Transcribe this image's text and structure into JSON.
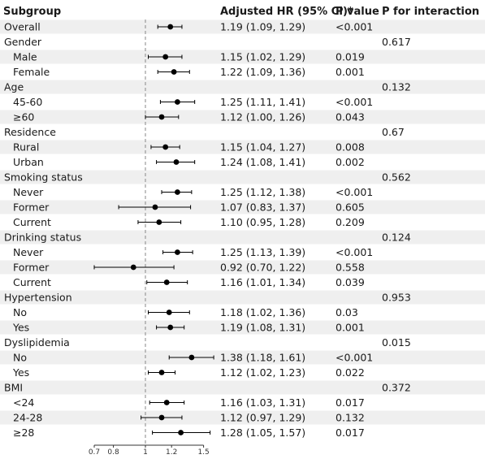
{
  "header": {
    "subgroup": "Subgroup",
    "hr": "Adjusted HR (95% CI)*",
    "p": "P value",
    "p_interaction": "P for interaction"
  },
  "colors": {
    "band": "#efefef",
    "point": "#000000",
    "reference_line": "#888888"
  },
  "chart_data": {
    "type": "forest",
    "title": "",
    "xlabel": "",
    "xlim": [
      0.7,
      1.6
    ],
    "xticks": [
      0.7,
      0.8,
      1,
      1.2,
      1.5
    ],
    "xtick_labels": [
      "0.7",
      "0.8",
      "1",
      "1.2",
      "1.5"
    ],
    "reference": 1,
    "rows": [
      {
        "label": "Overall",
        "level": 0,
        "hr": 1.19,
        "lo": 1.09,
        "hi": 1.29,
        "text": "1.19 (1.09, 1.29)",
        "p": "<0.001",
        "pint": ""
      },
      {
        "label": "Gender",
        "level": 0,
        "pint": "0.617"
      },
      {
        "label": "Male",
        "level": 1,
        "hr": 1.15,
        "lo": 1.02,
        "hi": 1.29,
        "text": "1.15 (1.02, 1.29)",
        "p": "0.019",
        "pint": ""
      },
      {
        "label": "Female",
        "level": 1,
        "hr": 1.22,
        "lo": 1.09,
        "hi": 1.36,
        "text": "1.22 (1.09, 1.36)",
        "p": "0.001",
        "pint": ""
      },
      {
        "label": "Age",
        "level": 0,
        "pint": "0.132"
      },
      {
        "label": "45-60",
        "level": 1,
        "hr": 1.25,
        "lo": 1.11,
        "hi": 1.41,
        "text": "1.25 (1.11, 1.41)",
        "p": "<0.001",
        "pint": ""
      },
      {
        "label": "≥60",
        "level": 1,
        "hr": 1.12,
        "lo": 1.0,
        "hi": 1.26,
        "text": "1.12 (1.00, 1.26)",
        "p": "0.043",
        "pint": ""
      },
      {
        "label": "Residence",
        "level": 0,
        "pint": "0.67"
      },
      {
        "label": "Rural",
        "level": 1,
        "hr": 1.15,
        "lo": 1.04,
        "hi": 1.27,
        "text": "1.15 (1.04, 1.27)",
        "p": "0.008",
        "pint": ""
      },
      {
        "label": "Urban",
        "level": 1,
        "hr": 1.24,
        "lo": 1.08,
        "hi": 1.41,
        "text": "1.24 (1.08, 1.41)",
        "p": "0.002",
        "pint": ""
      },
      {
        "label": "Smoking status",
        "level": 0,
        "pint": "0.562"
      },
      {
        "label": "Never",
        "level": 1,
        "hr": 1.25,
        "lo": 1.12,
        "hi": 1.38,
        "text": "1.25 (1.12, 1.38)",
        "p": "<0.001",
        "pint": ""
      },
      {
        "label": "Former",
        "level": 1,
        "hr": 1.07,
        "lo": 0.83,
        "hi": 1.37,
        "text": "1.07 (0.83, 1.37)",
        "p": "0.605",
        "pint": ""
      },
      {
        "label": "Current",
        "level": 1,
        "hr": 1.1,
        "lo": 0.95,
        "hi": 1.28,
        "text": "1.10 (0.95, 1.28)",
        "p": "0.209",
        "pint": ""
      },
      {
        "label": "Drinking status",
        "level": 0,
        "pint": "0.124"
      },
      {
        "label": "Never",
        "level": 1,
        "hr": 1.25,
        "lo": 1.13,
        "hi": 1.39,
        "text": "1.25 (1.13, 1.39)",
        "p": "<0.001",
        "pint": ""
      },
      {
        "label": "Former",
        "level": 1,
        "hr": 0.92,
        "lo": 0.7,
        "hi": 1.22,
        "text": "0.92 (0.70, 1.22)",
        "p": "0.558",
        "pint": ""
      },
      {
        "label": "Current",
        "level": 1,
        "hr": 1.16,
        "lo": 1.01,
        "hi": 1.34,
        "text": "1.16 (1.01, 1.34)",
        "p": "0.039",
        "pint": ""
      },
      {
        "label": "Hypertension",
        "level": 0,
        "pint": "0.953"
      },
      {
        "label": "No",
        "level": 1,
        "hr": 1.18,
        "lo": 1.02,
        "hi": 1.36,
        "text": "1.18 (1.02, 1.36)",
        "p": "0.03",
        "pint": ""
      },
      {
        "label": "Yes",
        "level": 1,
        "hr": 1.19,
        "lo": 1.08,
        "hi": 1.31,
        "text": "1.19 (1.08, 1.31)",
        "p": "0.001",
        "pint": ""
      },
      {
        "label": "Dyslipidemia",
        "level": 0,
        "pint": "0.015"
      },
      {
        "label": "No",
        "level": 1,
        "hr": 1.38,
        "lo": 1.18,
        "hi": 1.61,
        "text": "1.38 (1.18, 1.61)",
        "p": "<0.001",
        "pint": ""
      },
      {
        "label": "Yes",
        "level": 1,
        "hr": 1.12,
        "lo": 1.02,
        "hi": 1.23,
        "text": "1.12 (1.02, 1.23)",
        "p": "0.022",
        "pint": ""
      },
      {
        "label": "BMI",
        "level": 0,
        "pint": "0.372"
      },
      {
        "label": "<24",
        "level": 1,
        "hr": 1.16,
        "lo": 1.03,
        "hi": 1.31,
        "text": "1.16 (1.03, 1.31)",
        "p": "0.017",
        "pint": ""
      },
      {
        "label": "24-28",
        "level": 1,
        "hr": 1.12,
        "lo": 0.97,
        "hi": 1.29,
        "text": "1.12 (0.97, 1.29)",
        "p": "0.132",
        "pint": ""
      },
      {
        "label": "≥28",
        "level": 1,
        "hr": 1.28,
        "lo": 1.05,
        "hi": 1.57,
        "text": "1.28 (1.05, 1.57)",
        "p": "0.017",
        "pint": ""
      }
    ]
  }
}
